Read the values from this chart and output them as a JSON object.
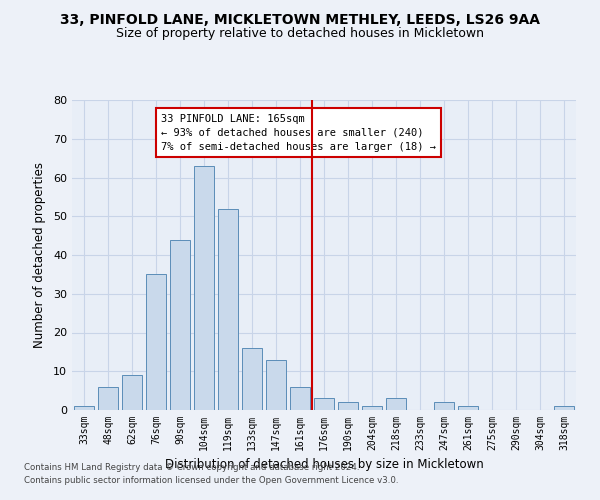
{
  "title_line1": "33, PINFOLD LANE, MICKLETOWN METHLEY, LEEDS, LS26 9AA",
  "title_line2": "Size of property relative to detached houses in Mickletown",
  "xlabel": "Distribution of detached houses by size in Mickletown",
  "ylabel": "Number of detached properties",
  "bar_labels": [
    "33sqm",
    "48sqm",
    "62sqm",
    "76sqm",
    "90sqm",
    "104sqm",
    "119sqm",
    "133sqm",
    "147sqm",
    "161sqm",
    "176sqm",
    "190sqm",
    "204sqm",
    "218sqm",
    "233sqm",
    "247sqm",
    "261sqm",
    "275sqm",
    "290sqm",
    "304sqm",
    "318sqm"
  ],
  "bar_values": [
    1,
    6,
    9,
    35,
    44,
    63,
    52,
    16,
    13,
    6,
    3,
    2,
    1,
    3,
    0,
    2,
    1,
    0,
    0,
    0,
    1
  ],
  "bar_color": "#c9d9eb",
  "bar_edgecolor": "#5b8db8",
  "annotation_title": "33 PINFOLD LANE: 165sqm",
  "annotation_line1": "← 93% of detached houses are smaller (240)",
  "annotation_line2": "7% of semi-detached houses are larger (18) →",
  "annotation_box_color": "#ffffff",
  "annotation_box_edgecolor": "#cc0000",
  "vline_color": "#cc0000",
  "vline_x_index": 9.5,
  "ylim": [
    0,
    80
  ],
  "yticks": [
    0,
    10,
    20,
    30,
    40,
    50,
    60,
    70,
    80
  ],
  "grid_color": "#c8d4e8",
  "bg_color": "#e8eef7",
  "fig_bg_color": "#edf1f8",
  "footer_line1": "Contains HM Land Registry data © Crown copyright and database right 2024.",
  "footer_line2": "Contains public sector information licensed under the Open Government Licence v3.0."
}
